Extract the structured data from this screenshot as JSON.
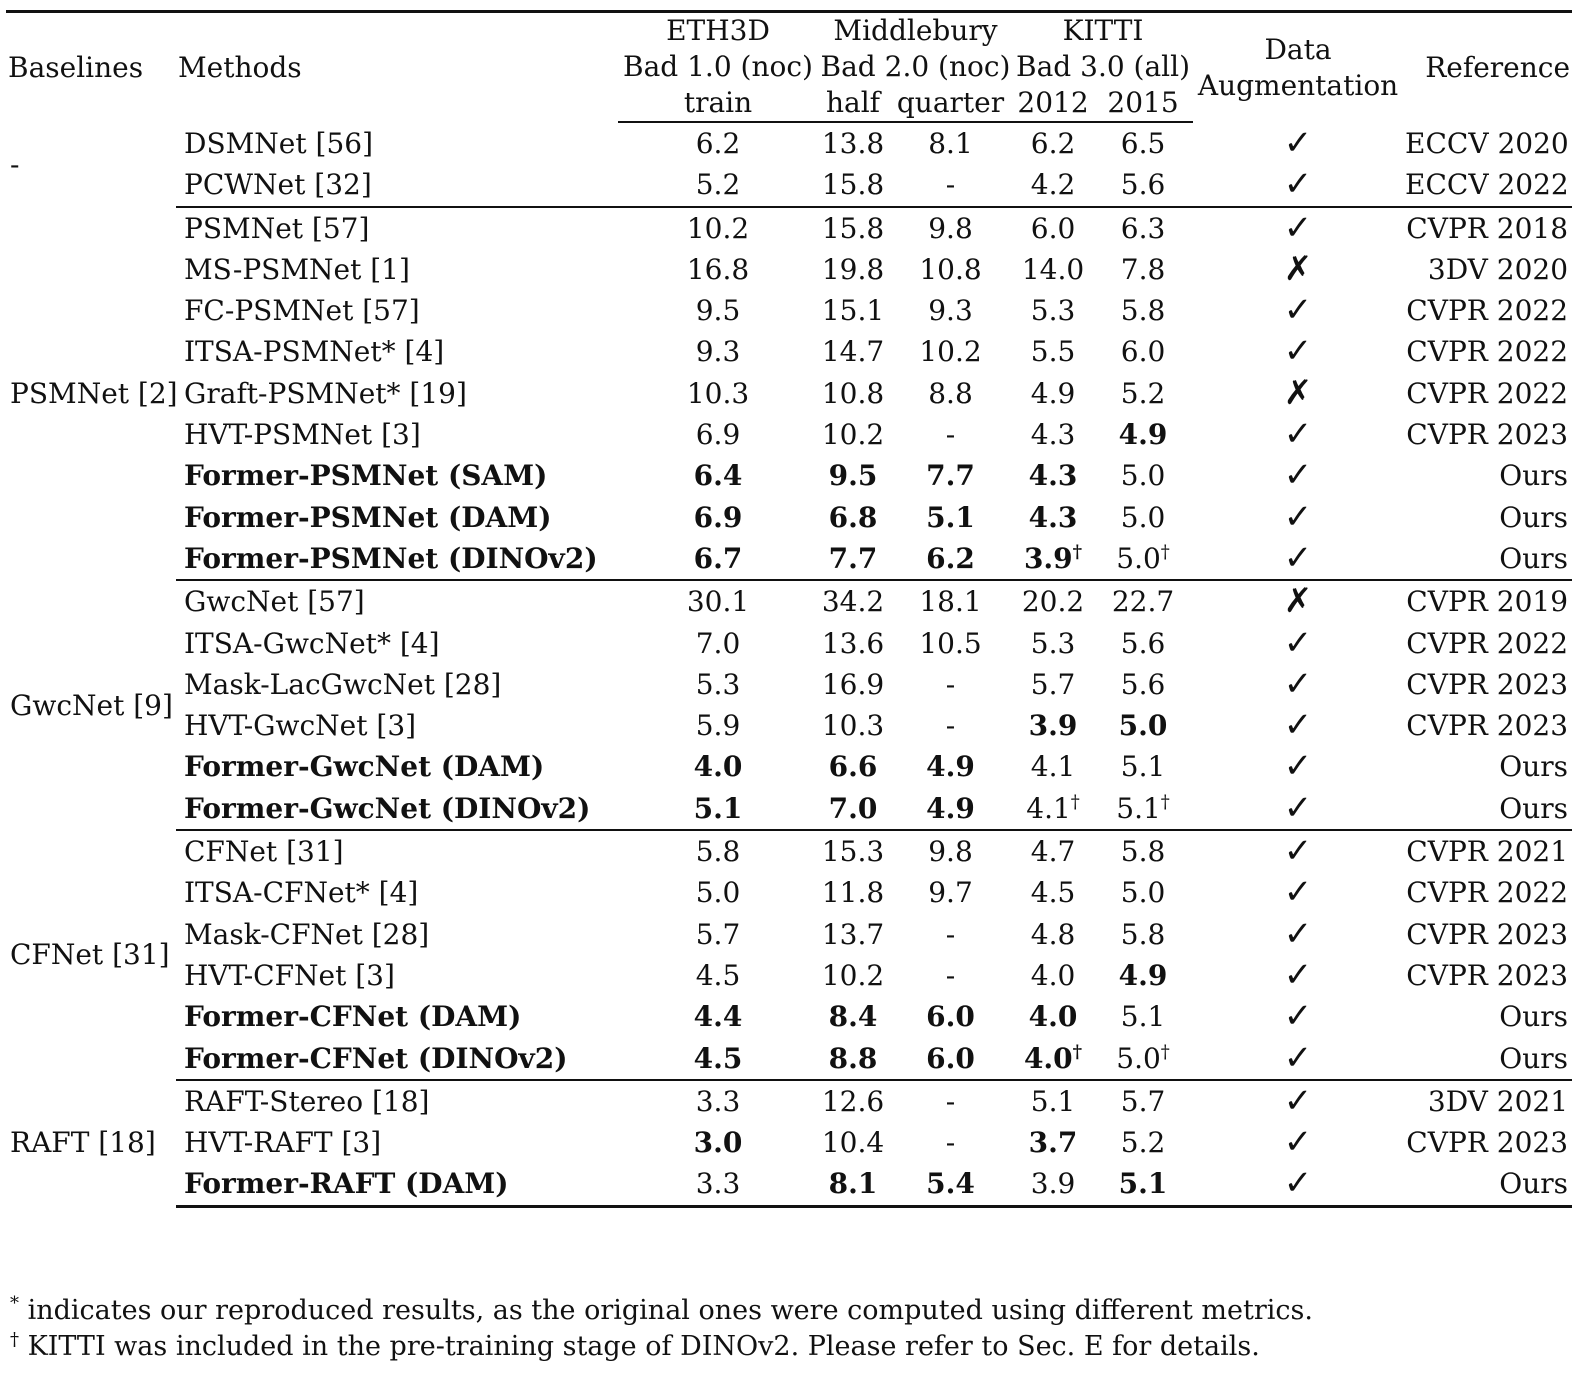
{
  "header": {
    "baselines": "Baselines",
    "methods": "Methods",
    "eth3d": "ETH3D",
    "eth3d_metric": "Bad 1.0 (noc)",
    "eth3d_split": "train",
    "middlebury": "Middlebury",
    "middlebury_metric": "Bad 2.0 (noc)",
    "mb_half": "half",
    "mb_quarter": "quarter",
    "kitti": "KITTI",
    "kitti_metric": "Bad 3.0 (all)",
    "kitti_2012": "2012",
    "kitti_2015": "2015",
    "data_aug_1": "Data",
    "data_aug_2": "Augmentation",
    "reference": "Reference"
  },
  "groups": [
    {
      "baseline": "-",
      "rows": [
        {
          "method": "DSMNet [56]",
          "bold": false,
          "eth": "6.2",
          "half": "13.8",
          "quarter": "8.1",
          "k12": "6.2",
          "k15": "6.5",
          "aug": "✓",
          "ref": "ECCV 2020"
        },
        {
          "method": "PCWNet [32]",
          "bold": false,
          "eth": "5.2",
          "half": "15.8",
          "quarter": "-",
          "k12": "4.2",
          "k15": "5.6",
          "aug": "✓",
          "ref": "ECCV 2022"
        }
      ]
    },
    {
      "baseline": "PSMNet [2]",
      "rows": [
        {
          "method": "PSMNet [57]",
          "bold": false,
          "eth": "10.2",
          "half": "15.8",
          "quarter": "9.8",
          "k12": "6.0",
          "k15": "6.3",
          "aug": "✓",
          "ref": "CVPR 2018"
        },
        {
          "method": "MS-PSMNet [1]",
          "bold": false,
          "eth": "16.8",
          "half": "19.8",
          "quarter": "10.8",
          "k12": "14.0",
          "k15": "7.8",
          "aug": "✗",
          "ref": "3DV 2020"
        },
        {
          "method": "FC-PSMNet [57]",
          "bold": false,
          "eth": "9.5",
          "half": "15.1",
          "quarter": "9.3",
          "k12": "5.3",
          "k15": "5.8",
          "aug": "✓",
          "ref": "CVPR 2022"
        },
        {
          "method": "ITSA-PSMNet* [4]",
          "bold": false,
          "eth": "9.3",
          "half": "14.7",
          "quarter": "10.2",
          "k12": "5.5",
          "k15": "6.0",
          "aug": "✓",
          "ref": "CVPR 2022"
        },
        {
          "method": "Graft-PSMNet* [19]",
          "bold": false,
          "eth": "10.3",
          "half": "10.8",
          "quarter": "8.8",
          "k12": "4.9",
          "k15": "5.2",
          "aug": "✗",
          "ref": "CVPR 2022"
        },
        {
          "method": "HVT-PSMNet [3]",
          "bold": false,
          "eth": "6.9",
          "half": "10.2",
          "quarter": "-",
          "k12": "4.3",
          "k15": "4.9",
          "k15_bold": true,
          "aug": "✓",
          "ref": "CVPR 2023"
        },
        {
          "method": "Former-PSMNet (SAM)",
          "bold": true,
          "eth": "6.4",
          "eth_bold": true,
          "half": "9.5",
          "half_bold": true,
          "quarter": "7.7",
          "quarter_bold": true,
          "k12": "4.3",
          "k12_bold": true,
          "k15": "5.0",
          "aug": "✓",
          "ref": "Ours"
        },
        {
          "method": "Former-PSMNet (DAM)",
          "bold": true,
          "eth": "6.9",
          "eth_bold": true,
          "half": "6.8",
          "half_bold": true,
          "quarter": "5.1",
          "quarter_bold": true,
          "k12": "4.3",
          "k12_bold": true,
          "k15": "5.0",
          "aug": "✓",
          "ref": "Ours"
        },
        {
          "method": "Former-PSMNet (DINOv2)",
          "bold": true,
          "eth": "6.7",
          "eth_bold": true,
          "half": "7.7",
          "half_bold": true,
          "quarter": "6.2",
          "quarter_bold": true,
          "k12": "3.9",
          "k12_bold": true,
          "k12_sup": "†",
          "k15": "5.0",
          "k15_sup": "†",
          "aug": "✓",
          "ref": "Ours"
        }
      ]
    },
    {
      "baseline": "GwcNet [9]",
      "rows": [
        {
          "method": "GwcNet [57]",
          "bold": false,
          "eth": "30.1",
          "half": "34.2",
          "quarter": "18.1",
          "k12": "20.2",
          "k15": "22.7",
          "aug": "✗",
          "ref": "CVPR 2019"
        },
        {
          "method": "ITSA-GwcNet* [4]",
          "bold": false,
          "eth": "7.0",
          "half": "13.6",
          "quarter": "10.5",
          "k12": "5.3",
          "k15": "5.6",
          "aug": "✓",
          "ref": "CVPR 2022"
        },
        {
          "method": "Mask-LacGwcNet [28]",
          "bold": false,
          "eth": "5.3",
          "half": "16.9",
          "quarter": "-",
          "k12": "5.7",
          "k15": "5.6",
          "aug": "✓",
          "ref": "CVPR 2023"
        },
        {
          "method": "HVT-GwcNet [3]",
          "bold": false,
          "eth": "5.9",
          "half": "10.3",
          "quarter": "-",
          "k12": "3.9",
          "k12_bold": true,
          "k15": "5.0",
          "k15_bold": true,
          "aug": "✓",
          "ref": "CVPR 2023"
        },
        {
          "method": "Former-GwcNet (DAM)",
          "bold": true,
          "eth": "4.0",
          "eth_bold": true,
          "half": "6.6",
          "half_bold": true,
          "quarter": "4.9",
          "quarter_bold": true,
          "k12": "4.1",
          "k15": "5.1",
          "aug": "✓",
          "ref": "Ours"
        },
        {
          "method": "Former-GwcNet (DINOv2)",
          "bold": true,
          "eth": "5.1",
          "eth_bold": true,
          "half": "7.0",
          "half_bold": true,
          "quarter": "4.9",
          "quarter_bold": true,
          "k12": "4.1",
          "k12_sup": "†",
          "k15": "5.1",
          "k15_sup": "†",
          "aug": "✓",
          "ref": "Ours"
        }
      ]
    },
    {
      "baseline": "CFNet [31]",
      "rows": [
        {
          "method": "CFNet [31]",
          "bold": false,
          "eth": "5.8",
          "half": "15.3",
          "quarter": "9.8",
          "k12": "4.7",
          "k15": "5.8",
          "aug": "✓",
          "ref": "CVPR 2021"
        },
        {
          "method": "ITSA-CFNet* [4]",
          "bold": false,
          "eth": "5.0",
          "half": "11.8",
          "quarter": "9.7",
          "k12": "4.5",
          "k15": "5.0",
          "aug": "✓",
          "ref": "CVPR 2022"
        },
        {
          "method": "Mask-CFNet [28]",
          "bold": false,
          "eth": "5.7",
          "half": "13.7",
          "quarter": "-",
          "k12": "4.8",
          "k15": "5.8",
          "aug": "✓",
          "ref": "CVPR 2023"
        },
        {
          "method": "HVT-CFNet [3]",
          "bold": false,
          "eth": "4.5",
          "half": "10.2",
          "quarter": "-",
          "k12": "4.0",
          "k15": "4.9",
          "k15_bold": true,
          "aug": "✓",
          "ref": "CVPR 2023"
        },
        {
          "method": "Former-CFNet (DAM)",
          "bold": true,
          "eth": "4.4",
          "eth_bold": true,
          "half": "8.4",
          "half_bold": true,
          "quarter": "6.0",
          "quarter_bold": true,
          "k12": "4.0",
          "k12_bold": true,
          "k15": "5.1",
          "aug": "✓",
          "ref": "Ours"
        },
        {
          "method": "Former-CFNet (DINOv2)",
          "bold": true,
          "eth": "4.5",
          "eth_bold": true,
          "half": "8.8",
          "half_bold": true,
          "quarter": "6.0",
          "quarter_bold": true,
          "k12": "4.0",
          "k12_bold": true,
          "k12_sup": "†",
          "k15": "5.0",
          "k15_sup": "†",
          "aug": "✓",
          "ref": "Ours"
        }
      ]
    },
    {
      "baseline": "RAFT [18]",
      "rows": [
        {
          "method": "RAFT-Stereo [18]",
          "bold": false,
          "eth": "3.3",
          "half": "12.6",
          "quarter": "-",
          "k12": "5.1",
          "k15": "5.7",
          "aug": "✓",
          "ref": "3DV 2021"
        },
        {
          "method": "HVT-RAFT [3]",
          "bold": false,
          "eth": "3.0",
          "eth_bold": true,
          "half": "10.4",
          "quarter": "-",
          "k12": "3.7",
          "k12_bold": true,
          "k15": "5.2",
          "aug": "✓",
          "ref": "CVPR 2023"
        },
        {
          "method": "Former-RAFT (DAM)",
          "bold": true,
          "eth": "3.3",
          "half": "8.1",
          "half_bold": true,
          "quarter": "5.4",
          "quarter_bold": true,
          "k12": "3.9",
          "k15": "5.1",
          "k15_bold": true,
          "aug": "✓",
          "ref": "Ours"
        }
      ]
    }
  ],
  "notes": [
    {
      "mark": "*",
      "text": " indicates our reproduced results, as the original ones were computed using different metrics."
    },
    {
      "mark": "†",
      "text": " KITTI was included in the pre-training stage of DINOv2. Please refer to Sec. E for details."
    }
  ]
}
